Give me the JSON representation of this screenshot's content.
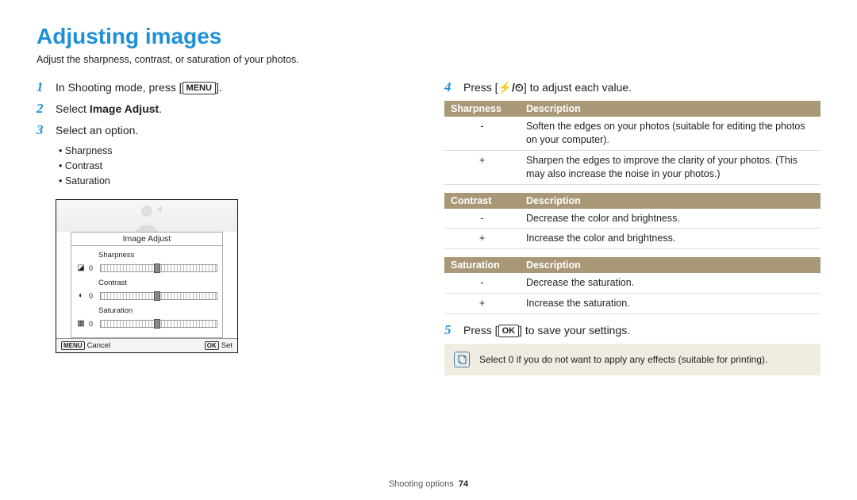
{
  "title": "Adjusting images",
  "subtitle": "Adjust the sharpness, contrast, or saturation of your photos.",
  "left": {
    "step1_pre": "In Shooting mode, press [",
    "step1_btn": "MENU",
    "step1_post": "].",
    "step2_pre": "Select ",
    "step2_bold": "Image Adjust",
    "step2_post": ".",
    "step3": "Select an option.",
    "options": [
      "Sharpness",
      "Contrast",
      "Saturation"
    ],
    "shot": {
      "panel_title": "Image Adjust",
      "rows": [
        {
          "label": "Sharpness",
          "glyph": "◪",
          "val": "0"
        },
        {
          "label": "Contrast",
          "glyph": "◐",
          "val": "0"
        },
        {
          "label": "Saturation",
          "glyph": "▦",
          "val": "0"
        }
      ],
      "cancel_btn": "MENU",
      "cancel_text": "Cancel",
      "set_btn": "OK",
      "set_text": "Set"
    }
  },
  "right": {
    "step4_pre": "Press [",
    "step4_icons": "⚡/⏲",
    "step4_post": "] to adjust each value.",
    "tables": [
      {
        "header_color": "#a99877",
        "col1": "Sharpness",
        "col2": "Description",
        "rows": [
          {
            "k": "-",
            "d": "Soften the edges on your photos (suitable for editing the photos on your computer)."
          },
          {
            "k": "+",
            "d": "Sharpen the edges to improve the clarity of your photos. (This may also increase the noise in your photos.)"
          }
        ]
      },
      {
        "header_color": "#a99877",
        "col1": "Contrast",
        "col2": "Description",
        "rows": [
          {
            "k": "-",
            "d": "Decrease the color and brightness."
          },
          {
            "k": "+",
            "d": "Increase the color and brightness."
          }
        ]
      },
      {
        "header_color": "#a99877",
        "col1": "Saturation",
        "col2": "Description",
        "rows": [
          {
            "k": "-",
            "d": "Decrease the saturation."
          },
          {
            "k": "+",
            "d": "Increase the saturation."
          }
        ]
      }
    ],
    "step5_pre": "Press [",
    "step5_btn": "OK",
    "step5_post": "] to save your settings.",
    "note": "Select 0 if you do not want to apply any effects (suitable for printing)."
  },
  "footer": {
    "section": "Shooting options",
    "page": "74"
  }
}
